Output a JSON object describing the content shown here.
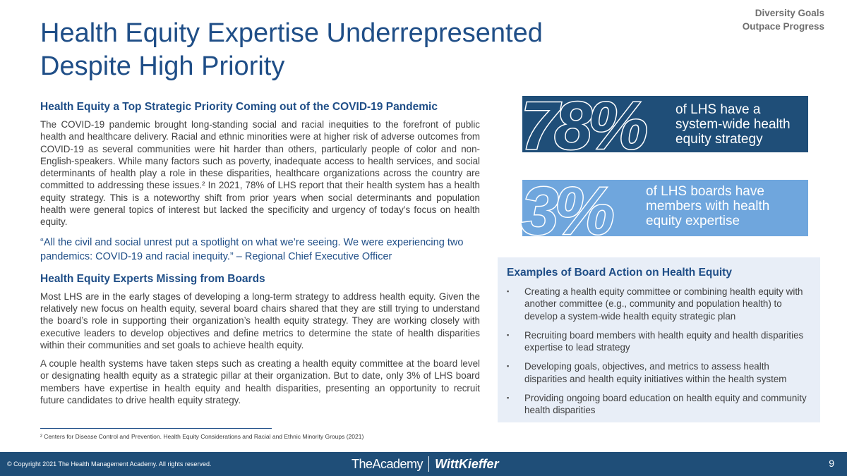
{
  "corner_tag": {
    "line1": "Diversity Goals",
    "line2": "Outpace Progress"
  },
  "title": {
    "line1": "Health Equity Expertise Underrepresented",
    "line2": "Despite High Priority"
  },
  "section1": {
    "heading": "Health Equity a Top Strategic Priority Coming out of the COVID-19 Pandemic",
    "body": "The COVID-19 pandemic brought long-standing social and racial inequities to the forefront of public health and healthcare delivery. Racial and ethnic minorities were at higher risk of adverse outcomes from COVID-19 as several communities were hit harder than others, particularly people of color and non-English-speakers. While many factors such as poverty, inadequate access to health services, and social determinants of health play a role in these disparities, healthcare organizations across the country are committed to addressing these issues.² In 2021, 78% of LHS report that their health system has a health equity strategy. This is a noteworthy shift from prior years when social determinants and population health were general topics of interest but lacked the specificity and urgency of today’s focus on health equity.",
    "quote": "“All the civil and social unrest put a spotlight on what we’re seeing. We were experiencing two pandemics: COVID-19 and racial inequity.” – Regional Chief Executive Officer"
  },
  "section2": {
    "heading": "Health Equity Experts Missing from Boards",
    "para1": "Most LHS are in the early stages of developing a long-term strategy to address health equity. Given the relatively new focus on health equity, several board chairs shared that they are still trying to understand the board’s role in supporting their organization’s health equity strategy. They are working closely with executive leaders to develop objectives and define metrics to determine the state of health disparities within their communities and set goals to achieve health equity.",
    "para2": "A couple health systems have taken steps such as creating a health equity committee at the board level or designating health equity as a strategic pillar at their organization. But to date, only 3% of LHS board members have expertise in health equity and health disparities, presenting an opportunity to recruit future candidates to drive health equity strategy."
  },
  "footnote": "² Centers for Disease Control and Prevention. Health Equity Considerations and Racial and Ethnic Minority Groups (2021)",
  "stats": [
    {
      "number": "78%",
      "line1": "of LHS have a",
      "line2": "system-wide health",
      "line3": "equity strategy"
    },
    {
      "number": "3%",
      "line1": "of LHS boards have",
      "line2": "members with health",
      "line3": "equity expertise"
    }
  ],
  "examples": {
    "title": "Examples of Board Action on Health Equity",
    "bullet_glyph": "▪",
    "items": [
      "Creating a health equity committee or combining health equity with another committee (e.g., community and population health) to develop a system-wide health equity strategic plan",
      "Recruiting board members with health equity and health disparities expertise to lead strategy",
      "Developing goals, objectives, and metrics to assess health disparities and health equity initiatives within the health system",
      "Providing ongoing board education on health equity and community health disparities"
    ]
  },
  "footer": {
    "copyright": "© Copyright 2021 The Health Management Academy. All rights reserved.",
    "logo_academy": "TheAcademy",
    "logo_wittkieffer": "WittKieffer",
    "page_number": "9"
  },
  "colors": {
    "title_blue": "#1f4e87",
    "dark_band": "#1f4e78",
    "light_band": "#6fa6dd",
    "box_bg": "#e8eef7"
  }
}
